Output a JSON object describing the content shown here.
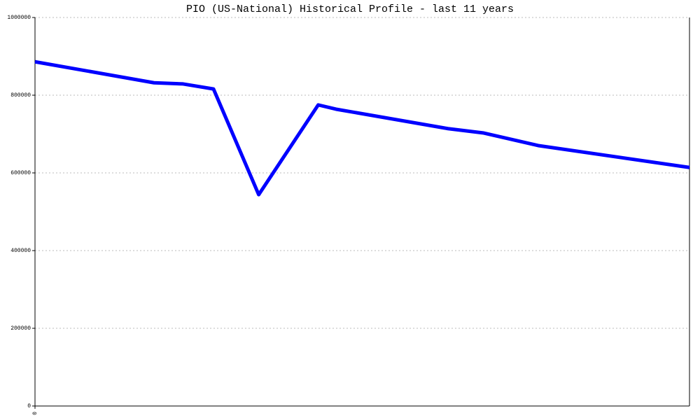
{
  "chart_data": {
    "type": "line",
    "title": "PIO (US-National) Historical Profile - last 11 years",
    "x": [
      0,
      2.0,
      2.49,
      3.0,
      3.76,
      4.76,
      5.06,
      6.94,
      7.53,
      8.47,
      11
    ],
    "series": [
      {
        "color": "#0000ff",
        "values": [
          886000,
          832000,
          829000,
          816000,
          544000,
          775000,
          764000,
          714000,
          703000,
          670000,
          614000
        ]
      }
    ],
    "xlim": [
      0,
      11
    ],
    "xticks": [
      0
    ],
    "ylim": [
      0,
      1000000
    ],
    "yticks": [
      0,
      200000,
      400000,
      600000,
      800000,
      1000000
    ],
    "grid": true
  }
}
